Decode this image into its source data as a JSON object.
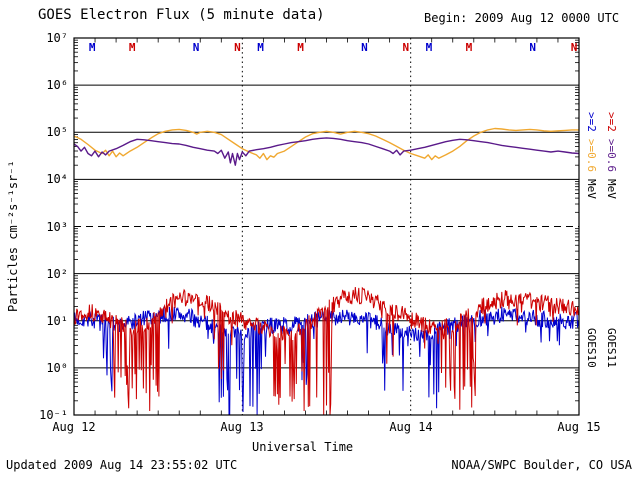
{
  "header": {
    "title": "GOES Electron Flux (5 minute data)",
    "begin_label": "Begin: 2009 Aug 12 0000 UTC"
  },
  "footer": {
    "updated": "Updated 2009 Aug 14 23:55:02 UTC",
    "source": "NOAA/SWPC Boulder, CO USA"
  },
  "chart_data": {
    "type": "line",
    "title": "GOES Electron Flux (5 minute data)",
    "xlabel": "Universal Time",
    "ylabel": "Particles cm⁻²s⁻¹sr⁻¹",
    "x_range_hours": [
      0,
      72
    ],
    "x_tick_labels": [
      "Aug 12",
      "Aug 13",
      "Aug 14",
      "Aug 15"
    ],
    "x_minor_tick_hours": 3,
    "y_scale": "log10",
    "y_log_range": [
      -1,
      7
    ],
    "y_tick_labels": [
      "10⁷",
      "10⁶",
      "10⁵",
      "10⁴",
      "10³",
      "10²",
      "10¹",
      "10⁰",
      "10⁻¹"
    ],
    "threshold_line_log": 3,
    "day_boundary_hours": [
      24,
      48
    ],
    "grid": "solid decade lines, dashed alert line at 10^3, dotted day boundaries",
    "smooth_series": [
      {
        "name": "GOES10 >=0.6 MeV electrons",
        "color": "#f0a830",
        "points": [
          [
            0,
            4.92
          ],
          [
            1,
            4.85
          ],
          [
            2,
            4.74
          ],
          [
            3,
            4.62
          ],
          [
            4,
            4.55
          ],
          [
            4.5,
            4.62
          ],
          [
            5,
            4.5
          ],
          [
            5.5,
            4.6
          ],
          [
            6,
            4.48
          ],
          [
            6.5,
            4.56
          ],
          [
            7,
            4.5
          ],
          [
            8,
            4.6
          ],
          [
            9,
            4.68
          ],
          [
            10,
            4.78
          ],
          [
            11,
            4.88
          ],
          [
            12,
            4.97
          ],
          [
            13,
            5.02
          ],
          [
            14,
            5.05
          ],
          [
            15,
            5.06
          ],
          [
            16,
            5.04
          ],
          [
            17,
            5.0
          ],
          [
            17.5,
            4.96
          ],
          [
            18,
            5.0
          ],
          [
            19,
            5.02
          ],
          [
            20,
            5.0
          ],
          [
            21,
            4.95
          ],
          [
            22,
            4.85
          ],
          [
            23,
            4.75
          ],
          [
            24,
            4.65
          ],
          [
            25,
            4.58
          ],
          [
            26,
            4.52
          ],
          [
            26.5,
            4.45
          ],
          [
            27,
            4.55
          ],
          [
            27.5,
            4.42
          ],
          [
            28,
            4.5
          ],
          [
            28.5,
            4.47
          ],
          [
            29,
            4.55
          ],
          [
            30,
            4.6
          ],
          [
            31,
            4.7
          ],
          [
            32,
            4.8
          ],
          [
            33,
            4.9
          ],
          [
            34,
            4.97
          ],
          [
            35,
            5.0
          ],
          [
            36,
            5.02
          ],
          [
            37,
            5.0
          ],
          [
            38,
            4.96
          ],
          [
            39,
            5.0
          ],
          [
            40,
            5.02
          ],
          [
            41,
            5.0
          ],
          [
            42,
            4.97
          ],
          [
            43,
            4.92
          ],
          [
            44,
            4.85
          ],
          [
            45,
            4.78
          ],
          [
            46,
            4.7
          ],
          [
            47,
            4.62
          ],
          [
            48,
            4.55
          ],
          [
            49,
            4.5
          ],
          [
            50,
            4.45
          ],
          [
            50.5,
            4.52
          ],
          [
            51,
            4.42
          ],
          [
            51.5,
            4.5
          ],
          [
            52,
            4.45
          ],
          [
            53,
            4.52
          ],
          [
            54,
            4.6
          ],
          [
            55,
            4.7
          ],
          [
            56,
            4.82
          ],
          [
            57,
            4.92
          ],
          [
            58,
            5.0
          ],
          [
            59,
            5.05
          ],
          [
            60,
            5.08
          ],
          [
            61,
            5.07
          ],
          [
            62,
            5.05
          ],
          [
            63,
            5.04
          ],
          [
            64,
            5.05
          ],
          [
            65,
            5.06
          ],
          [
            66,
            5.05
          ],
          [
            67,
            5.03
          ],
          [
            68,
            5.02
          ],
          [
            69,
            5.03
          ],
          [
            70,
            5.04
          ],
          [
            71,
            5.05
          ],
          [
            72,
            5.05
          ]
        ]
      },
      {
        "name": "GOES11 >=0.6 MeV electrons",
        "color": "#5a1a8a",
        "points": [
          [
            0,
            4.75
          ],
          [
            0.5,
            4.7
          ],
          [
            1,
            4.6
          ],
          [
            1.5,
            4.68
          ],
          [
            2,
            4.55
          ],
          [
            2.5,
            4.5
          ],
          [
            3,
            4.6
          ],
          [
            3.5,
            4.48
          ],
          [
            4,
            4.58
          ],
          [
            4.5,
            4.52
          ],
          [
            5,
            4.6
          ],
          [
            6,
            4.65
          ],
          [
            7,
            4.72
          ],
          [
            8,
            4.8
          ],
          [
            9,
            4.85
          ],
          [
            10,
            4.84
          ],
          [
            11,
            4.82
          ],
          [
            12,
            4.8
          ],
          [
            13,
            4.78
          ],
          [
            14,
            4.76
          ],
          [
            15,
            4.75
          ],
          [
            16,
            4.72
          ],
          [
            17,
            4.68
          ],
          [
            18,
            4.65
          ],
          [
            19,
            4.62
          ],
          [
            20,
            4.6
          ],
          [
            20.5,
            4.55
          ],
          [
            21,
            4.62
          ],
          [
            21.5,
            4.45
          ],
          [
            22,
            4.58
          ],
          [
            22.3,
            4.35
          ],
          [
            22.6,
            4.55
          ],
          [
            23,
            4.3
          ],
          [
            23.3,
            4.55
          ],
          [
            23.6,
            4.42
          ],
          [
            24,
            4.58
          ],
          [
            24.5,
            4.5
          ],
          [
            25,
            4.6
          ],
          [
            26,
            4.63
          ],
          [
            27,
            4.65
          ],
          [
            28,
            4.68
          ],
          [
            29,
            4.72
          ],
          [
            30,
            4.75
          ],
          [
            31,
            4.78
          ],
          [
            32,
            4.8
          ],
          [
            33,
            4.82
          ],
          [
            34,
            4.85
          ],
          [
            35,
            4.87
          ],
          [
            36,
            4.88
          ],
          [
            37,
            4.87
          ],
          [
            38,
            4.85
          ],
          [
            39,
            4.82
          ],
          [
            40,
            4.8
          ],
          [
            41,
            4.78
          ],
          [
            42,
            4.75
          ],
          [
            43,
            4.7
          ],
          [
            44,
            4.65
          ],
          [
            45,
            4.6
          ],
          [
            45.5,
            4.55
          ],
          [
            46,
            4.62
          ],
          [
            46.5,
            4.52
          ],
          [
            47,
            4.6
          ],
          [
            48,
            4.62
          ],
          [
            49,
            4.65
          ],
          [
            50,
            4.68
          ],
          [
            51,
            4.72
          ],
          [
            52,
            4.76
          ],
          [
            53,
            4.8
          ],
          [
            54,
            4.83
          ],
          [
            55,
            4.85
          ],
          [
            56,
            4.84
          ],
          [
            57,
            4.82
          ],
          [
            58,
            4.8
          ],
          [
            59,
            4.78
          ],
          [
            60,
            4.75
          ],
          [
            61,
            4.72
          ],
          [
            62,
            4.7
          ],
          [
            63,
            4.68
          ],
          [
            64,
            4.66
          ],
          [
            65,
            4.64
          ],
          [
            66,
            4.62
          ],
          [
            67,
            4.6
          ],
          [
            68,
            4.58
          ],
          [
            69,
            4.6
          ],
          [
            70,
            4.58
          ],
          [
            71,
            4.56
          ],
          [
            72,
            4.55
          ]
        ]
      }
    ],
    "noisy_series": [
      {
        "name": "GOES10 >2 MeV electrons",
        "color": "#0000cd",
        "seed": 7,
        "step_hours": 0.1,
        "noise_log": 0.18,
        "spike_prob": 0.05,
        "spike_amp": 0.6,
        "base": [
          [
            0,
            1.0
          ],
          [
            2,
            1.05
          ],
          [
            4,
            0.95
          ],
          [
            6,
            0.9
          ],
          [
            8,
            0.95
          ],
          [
            10,
            1.05
          ],
          [
            12,
            1.1
          ],
          [
            14,
            1.15
          ],
          [
            16,
            1.1
          ],
          [
            18,
            1.0
          ],
          [
            20,
            0.85
          ],
          [
            22,
            0.7
          ],
          [
            24,
            0.75
          ],
          [
            26,
            0.8
          ],
          [
            28,
            0.9
          ],
          [
            30,
            0.9
          ],
          [
            32,
            0.95
          ],
          [
            34,
            1.0
          ],
          [
            36,
            1.05
          ],
          [
            38,
            1.1
          ],
          [
            40,
            1.05
          ],
          [
            42,
            1.0
          ],
          [
            44,
            0.9
          ],
          [
            46,
            0.8
          ],
          [
            48,
            0.75
          ],
          [
            50,
            0.7
          ],
          [
            52,
            0.8
          ],
          [
            54,
            0.9
          ],
          [
            56,
            1.0
          ],
          [
            58,
            1.05
          ],
          [
            60,
            1.1
          ],
          [
            62,
            1.15
          ],
          [
            64,
            1.1
          ],
          [
            66,
            1.05
          ],
          [
            68,
            1.0
          ],
          [
            70,
            1.0
          ],
          [
            72,
            1.0
          ]
        ],
        "dropouts": [
          {
            "t0": 3.5,
            "t1": 5.5,
            "depth": -0.5,
            "prob": 0.2
          },
          {
            "t0": 20.3,
            "t1": 26.8,
            "depth": -1.1,
            "prob": 0.32
          },
          {
            "t0": 31.5,
            "t1": 33.5,
            "depth": -1.1,
            "prob": 0.2
          },
          {
            "t0": 44.0,
            "t1": 47.0,
            "depth": -0.5,
            "prob": 0.22
          },
          {
            "t0": 49.7,
            "t1": 52.2,
            "depth": -1.1,
            "prob": 0.32
          },
          {
            "t0": 64.5,
            "t1": 66.0,
            "depth": -0.3,
            "prob": 0.15
          }
        ]
      },
      {
        "name": "GOES11 >2 MeV electrons",
        "color": "#cc0000",
        "seed": 13,
        "step_hours": 0.1,
        "noise_log": 0.18,
        "spike_prob": 0.05,
        "spike_amp": 0.6,
        "base": [
          [
            0,
            1.1
          ],
          [
            2,
            1.2
          ],
          [
            4,
            1.1
          ],
          [
            6,
            0.95
          ],
          [
            8,
            0.85
          ],
          [
            10,
            0.9
          ],
          [
            12,
            1.15
          ],
          [
            14,
            1.4
          ],
          [
            16,
            1.5
          ],
          [
            18,
            1.45
          ],
          [
            20,
            1.3
          ],
          [
            22,
            1.1
          ],
          [
            24,
            1.0
          ],
          [
            26,
            0.9
          ],
          [
            28,
            0.8
          ],
          [
            30,
            0.75
          ],
          [
            32,
            0.8
          ],
          [
            34,
            1.0
          ],
          [
            36,
            1.25
          ],
          [
            38,
            1.45
          ],
          [
            40,
            1.55
          ],
          [
            42,
            1.5
          ],
          [
            44,
            1.35
          ],
          [
            46,
            1.2
          ],
          [
            48,
            1.05
          ],
          [
            50,
            0.9
          ],
          [
            52,
            0.85
          ],
          [
            54,
            0.9
          ],
          [
            56,
            1.1
          ],
          [
            58,
            1.3
          ],
          [
            60,
            1.4
          ],
          [
            62,
            1.5
          ],
          [
            64,
            1.45
          ],
          [
            66,
            1.4
          ],
          [
            68,
            1.35
          ],
          [
            70,
            1.3
          ],
          [
            72,
            1.25
          ]
        ],
        "dropouts": [
          {
            "t0": 5.3,
            "t1": 12.3,
            "depth": -1.1,
            "prob": 0.3
          },
          {
            "t0": 20.0,
            "t1": 21.5,
            "depth": -0.4,
            "prob": 0.2
          },
          {
            "t0": 28.3,
            "t1": 36.8,
            "depth": -1.1,
            "prob": 0.3
          },
          {
            "t0": 44.5,
            "t1": 46.5,
            "depth": -0.3,
            "prob": 0.15
          },
          {
            "t0": 52.4,
            "t1": 57.8,
            "depth": -1.1,
            "prob": 0.3
          }
        ]
      }
    ],
    "markers": [
      {
        "t": 2.6,
        "label": "M",
        "color": "#0000cd"
      },
      {
        "t": 8.3,
        "label": "M",
        "color": "#cc0000"
      },
      {
        "t": 17.4,
        "label": "N",
        "color": "#0000cd"
      },
      {
        "t": 23.3,
        "label": "N",
        "color": "#cc0000"
      },
      {
        "t": 26.6,
        "label": "M",
        "color": "#0000cd"
      },
      {
        "t": 32.3,
        "label": "M",
        "color": "#cc0000"
      },
      {
        "t": 41.4,
        "label": "N",
        "color": "#0000cd"
      },
      {
        "t": 47.3,
        "label": "N",
        "color": "#cc0000"
      },
      {
        "t": 50.6,
        "label": "M",
        "color": "#0000cd"
      },
      {
        "t": 56.3,
        "label": "M",
        "color": "#cc0000"
      },
      {
        "t": 65.4,
        "label": "N",
        "color": "#0000cd"
      },
      {
        "t": 71.3,
        "label": "N",
        "color": "#cc0000"
      }
    ],
    "legend": {
      "columns": [
        {
          "satellite": "GOES10",
          "e2_label": ">=2",
          "e06_label": ">=0.6",
          "unit": "MeV",
          "e2_color": "#0000cd",
          "e06_color": "#f0a830"
        },
        {
          "satellite": "GOES11",
          "e2_label": ">=2",
          "e06_label": ">=0.6",
          "unit": "MeV",
          "e2_color": "#cc0000",
          "e06_color": "#5a1a8a"
        }
      ]
    }
  }
}
